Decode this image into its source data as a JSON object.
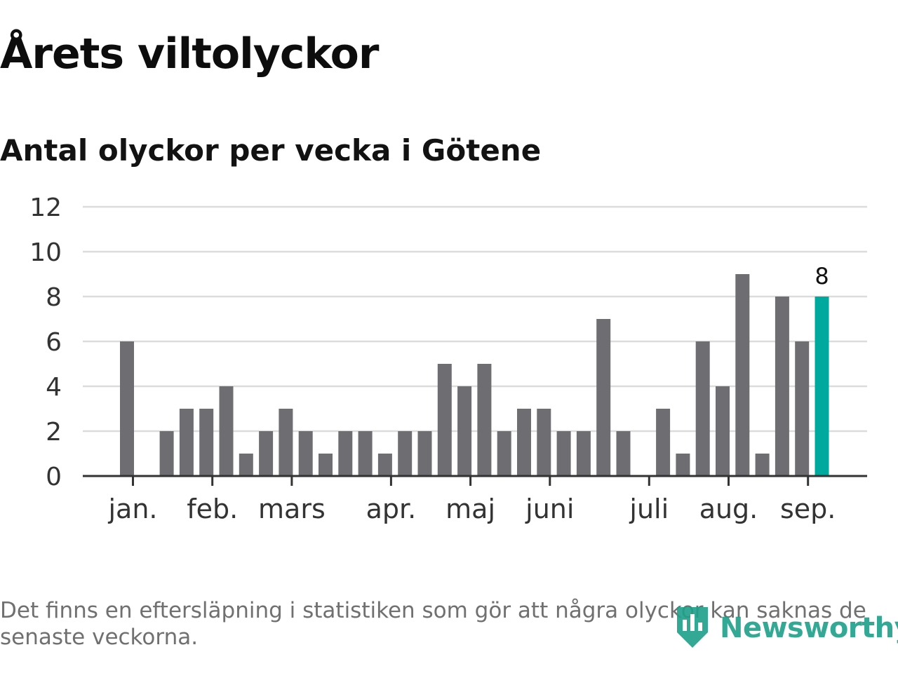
{
  "title": "Årets viltolyckor",
  "subtitle": "Antal olyckor per vecka i Götene",
  "footnote": "Det finns en eftersläpning i statistiken som gör att några olyckor kan saknas de senaste veckorna.",
  "brand": {
    "name": "Newsworthy",
    "logo_icon": "bar-chart-shield-icon"
  },
  "colors": {
    "bar": "#6e6d72",
    "highlight": "#00a99d",
    "grid": "#dcdcdc",
    "axis": "#333333",
    "brand": "#1ea08a"
  },
  "chart_data": {
    "type": "bar",
    "x_unit": "week",
    "values": [
      6,
      0,
      2,
      3,
      3,
      4,
      1,
      2,
      3,
      2,
      1,
      2,
      2,
      1,
      2,
      2,
      5,
      4,
      5,
      2,
      3,
      3,
      2,
      2,
      7,
      2,
      0,
      3,
      1,
      6,
      4,
      9,
      1,
      8,
      6,
      8
    ],
    "highlight_index": 35,
    "highlight_label": "8",
    "ylim": [
      0,
      12
    ],
    "yticks": [
      0,
      2,
      4,
      6,
      8,
      10,
      12
    ],
    "month_labels": [
      {
        "label": "jan.",
        "week_pos": 0.3
      },
      {
        "label": "feb.",
        "week_pos": 4.3
      },
      {
        "label": "mars",
        "week_pos": 8.3
      },
      {
        "label": "apr.",
        "week_pos": 13.3
      },
      {
        "label": "maj",
        "week_pos": 17.3
      },
      {
        "label": "juni",
        "week_pos": 21.3
      },
      {
        "label": "juli",
        "week_pos": 26.3
      },
      {
        "label": "aug.",
        "week_pos": 30.3
      },
      {
        "label": "sep.",
        "week_pos": 34.3
      }
    ],
    "xlabel": "",
    "ylabel": "",
    "grid": true
  }
}
